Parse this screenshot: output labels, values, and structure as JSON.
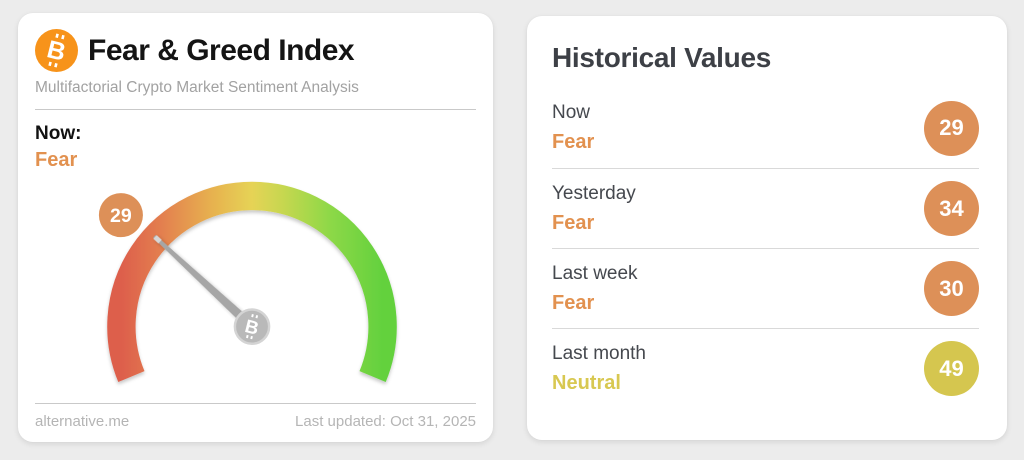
{
  "theme": {
    "bitcoin_orange": "#f7931a",
    "fear_orange": "#e2914f",
    "neutral_yellow": "#d8c851",
    "badge_orange": "#dd9058",
    "badge_yellow": "#d5c64f",
    "needle_gray": "#a6a6a6",
    "gauge_gradient": [
      "#dd5f4c",
      "#e37e4f",
      "#e7b24f",
      "#e6d355",
      "#c6d750",
      "#8dd847",
      "#63d13e"
    ]
  },
  "left_card": {
    "logo": "bitcoin-icon",
    "title": "Fear & Greed Index",
    "subtitle": "Multifactorial Crypto Market Sentiment Analysis",
    "now_label": "Now:",
    "now_classification": "Fear",
    "footer_left": "alternative.me",
    "footer_right": "Last updated: Oct 31, 2025"
  },
  "chart_data": {
    "type": "gauge",
    "title": "Fear & Greed Index",
    "value": 29,
    "min": 0,
    "max": 100,
    "classification": "Fear",
    "start_angle_deg": 202.5,
    "sweep_deg": 225,
    "scale_colors_left_to_right": [
      "red",
      "orange",
      "yellow",
      "green"
    ]
  },
  "right_card": {
    "title": "Historical Values",
    "rows": [
      {
        "label": "Now",
        "classification": "Fear",
        "value": "29"
      },
      {
        "label": "Yesterday",
        "classification": "Fear",
        "value": "34"
      },
      {
        "label": "Last week",
        "classification": "Fear",
        "value": "30"
      },
      {
        "label": "Last month",
        "classification": "Neutral",
        "value": "49"
      }
    ]
  }
}
